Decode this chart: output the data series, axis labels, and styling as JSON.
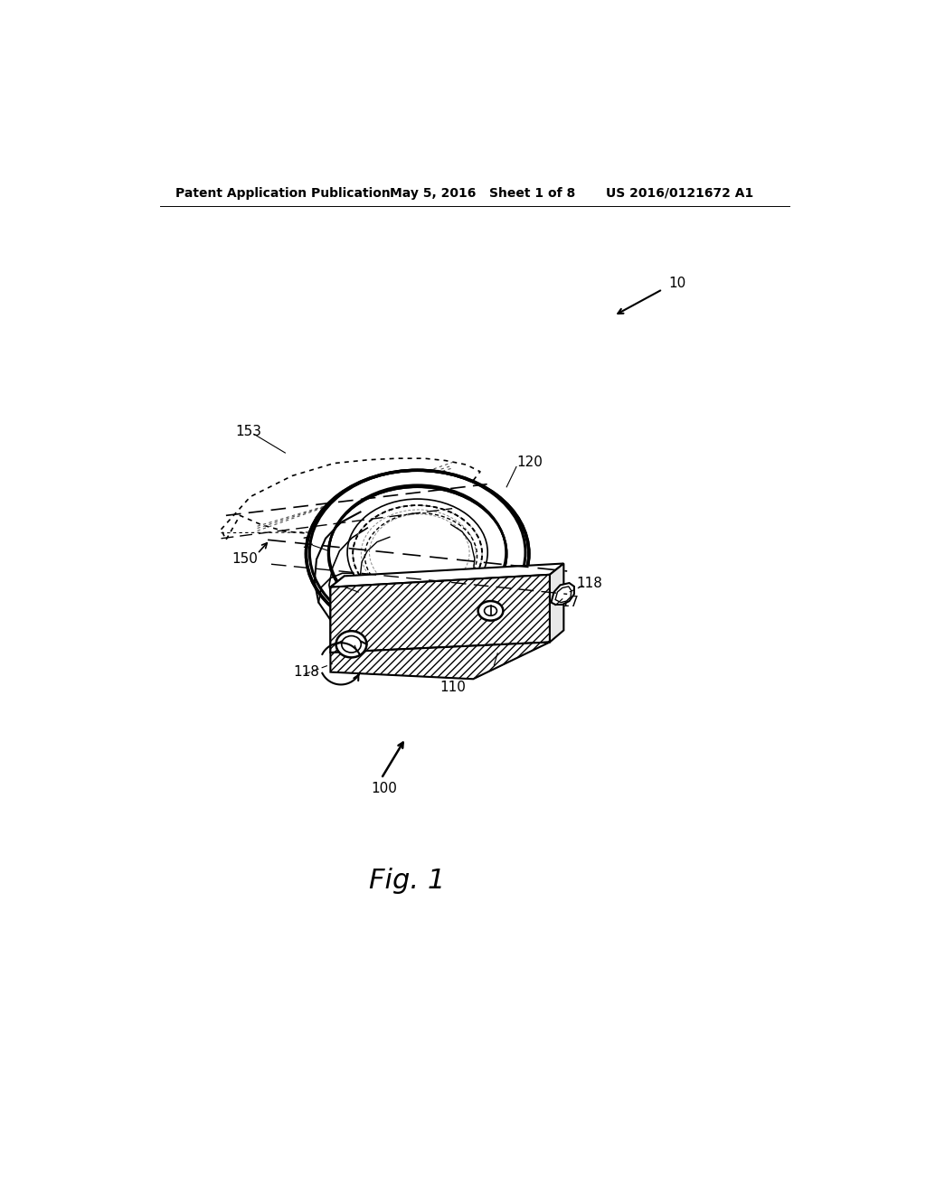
{
  "background_color": "#ffffff",
  "header_left": "Patent Application Publication",
  "header_mid": "May 5, 2016   Sheet 1 of 8",
  "header_right": "US 2016/0121672 A1",
  "fig_label": "Fig. 1",
  "text_color": "#000000",
  "line_color": "#000000"
}
